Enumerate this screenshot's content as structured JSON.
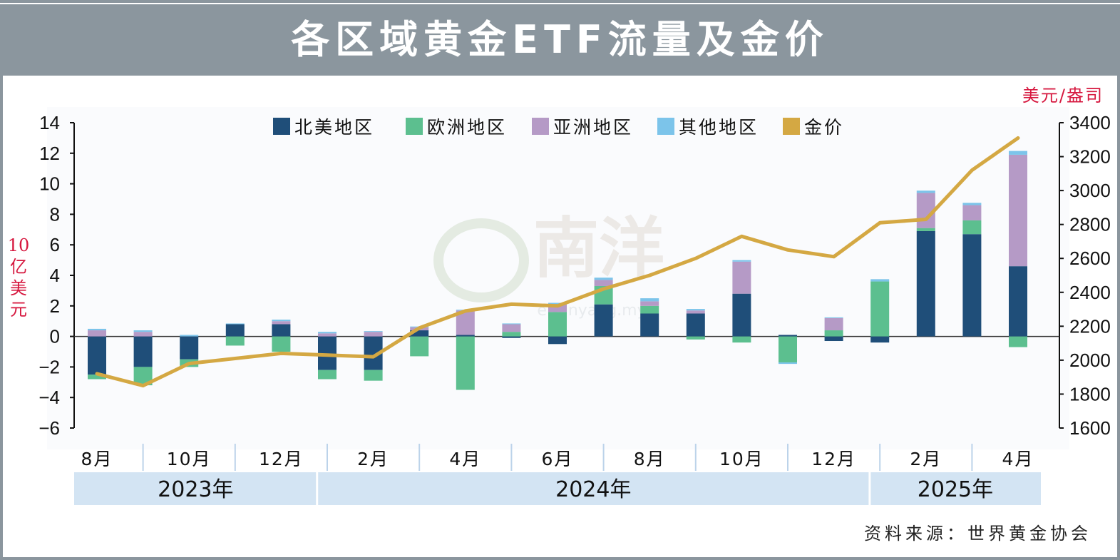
{
  "title": "各区域黄金ETF流量及金价",
  "source": "资料来源：世界黄金协会",
  "colors": {
    "north_america": "#1f4e79",
    "europe": "#5cbf8f",
    "asia": "#b59ac6",
    "other": "#7cc4ea",
    "gold": "#d4a843",
    "header_bg": "#8b969e",
    "year_band": "#d3e4f3",
    "unit_red": "#d6173e"
  },
  "chart_data": {
    "type": "bar",
    "stacked": true,
    "left_axis": {
      "unit": "10亿美元",
      "ylim": [
        -6,
        14
      ],
      "ticks": [
        -6,
        -4,
        -2,
        0,
        2,
        4,
        6,
        8,
        10,
        12,
        14
      ]
    },
    "right_axis": {
      "unit": "美元/盎司",
      "ylim": [
        1600,
        3400
      ],
      "ticks": [
        1600,
        1800,
        2000,
        2200,
        2400,
        2600,
        2800,
        3000,
        3200,
        3400
      ]
    },
    "month_labels": [
      {
        "label": "8月",
        "index": 0
      },
      {
        "label": "10月",
        "index": 2
      },
      {
        "label": "12月",
        "index": 4
      },
      {
        "label": "2月",
        "index": 6
      },
      {
        "label": "4月",
        "index": 8
      },
      {
        "label": "6月",
        "index": 10
      },
      {
        "label": "8月",
        "index": 12
      },
      {
        "label": "10月",
        "index": 14
      },
      {
        "label": "12月",
        "index": 16
      },
      {
        "label": "2月",
        "index": 18
      },
      {
        "label": "4月",
        "index": 20
      }
    ],
    "years": [
      {
        "label": "2023年",
        "from": 0,
        "to": 4
      },
      {
        "label": "2024年",
        "from": 5,
        "to": 16
      },
      {
        "label": "2025年",
        "from": 17,
        "to": 20
      }
    ],
    "categories": [
      "2023-08",
      "2023-09",
      "2023-10",
      "2023-11",
      "2023-12",
      "2024-01",
      "2024-02",
      "2024-03",
      "2024-04",
      "2024-05",
      "2024-06",
      "2024-07",
      "2024-08",
      "2024-09",
      "2024-10",
      "2024-11",
      "2024-12",
      "2025-01",
      "2025-02",
      "2025-03",
      "2025-04"
    ],
    "series": [
      {
        "name": "北美地区",
        "key": "north_america",
        "values": [
          -2.5,
          -2.0,
          -1.5,
          0.8,
          0.8,
          -2.2,
          -2.2,
          0.4,
          0.1,
          -0.1,
          -0.5,
          2.1,
          1.5,
          1.5,
          2.8,
          0.1,
          -0.3,
          -0.4,
          6.9,
          6.7,
          4.6
        ]
      },
      {
        "name": "欧洲地区",
        "key": "europe",
        "values": [
          -0.3,
          -1.2,
          -0.5,
          -0.6,
          -1.0,
          -0.6,
          -0.7,
          -1.3,
          -3.5,
          0.3,
          1.6,
          1.2,
          0.5,
          -0.2,
          -0.4,
          -1.7,
          0.4,
          3.6,
          0.2,
          0.9,
          -0.7
        ]
      },
      {
        "name": "亚洲地区",
        "key": "asia",
        "values": [
          0.4,
          0.3,
          0.0,
          0.0,
          0.2,
          0.2,
          0.3,
          0.2,
          1.6,
          0.5,
          0.5,
          0.4,
          0.3,
          0.2,
          2.1,
          0.0,
          0.8,
          0.0,
          2.3,
          1.0,
          7.3
        ]
      },
      {
        "name": "其他地区",
        "key": "other",
        "values": [
          0.1,
          0.1,
          0.1,
          0.05,
          0.1,
          0.1,
          0.05,
          0.05,
          0.05,
          0.05,
          0.1,
          0.15,
          0.2,
          0.1,
          0.1,
          -0.1,
          0.05,
          0.15,
          0.15,
          0.15,
          0.25
        ]
      }
    ],
    "line_series": {
      "name": "金价",
      "key": "gold",
      "values": [
        1920,
        1850,
        1980,
        2010,
        2040,
        2030,
        2020,
        2190,
        2290,
        2330,
        2320,
        2420,
        2500,
        2600,
        2730,
        2650,
        2610,
        2810,
        2830,
        3120,
        3310
      ]
    }
  }
}
